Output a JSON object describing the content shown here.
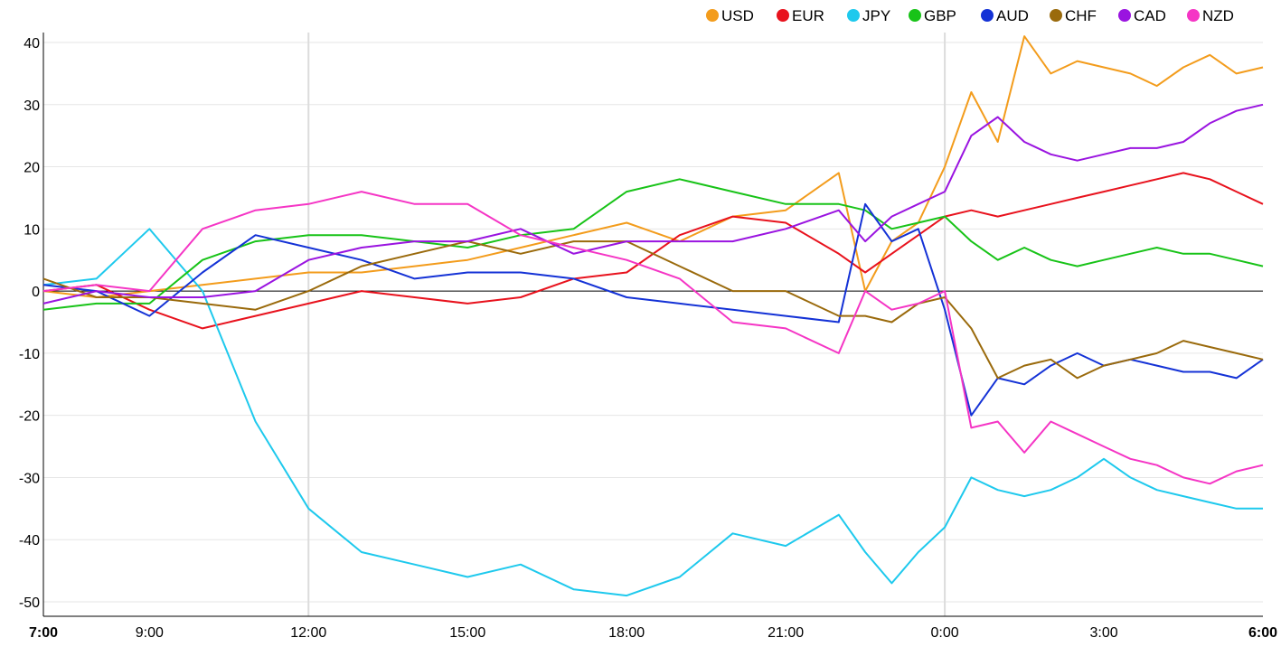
{
  "chart_data": {
    "type": "line",
    "title": "",
    "xlabel": "",
    "ylabel": "",
    "ylim": [
      -52,
      41
    ],
    "y_ticks": [
      40,
      30,
      20,
      10,
      0,
      -10,
      -20,
      -30,
      -40,
      -50
    ],
    "x_ticks": [
      {
        "label": "7:00",
        "hour": 0,
        "bold": true
      },
      {
        "label": "9:00",
        "hour": 2,
        "bold": false
      },
      {
        "label": "12:00",
        "hour": 5,
        "bold": false
      },
      {
        "label": "15:00",
        "hour": 8,
        "bold": false
      },
      {
        "label": "18:00",
        "hour": 11,
        "bold": false
      },
      {
        "label": "21:00",
        "hour": 14,
        "bold": false
      },
      {
        "label": "0:00",
        "hour": 17,
        "bold": false
      },
      {
        "label": "3:00",
        "hour": 20,
        "bold": false
      },
      {
        "label": "6:00",
        "hour": 23,
        "bold": true
      }
    ],
    "xlim": [
      0,
      23
    ],
    "major_grid_hours": [
      5,
      17
    ],
    "legend_position": "top-right",
    "series": [
      {
        "name": "USD",
        "color": "#f39c1c",
        "x": [
          0,
          1,
          2,
          3,
          4,
          5,
          6,
          7,
          8,
          9,
          10,
          11,
          12,
          13,
          14,
          15,
          15.5,
          16,
          16.5,
          17,
          17.5,
          18,
          18.5,
          19,
          19.5,
          20,
          20.5,
          21,
          21.5,
          22,
          22.5,
          23
        ],
        "y": [
          0,
          -1,
          0,
          1,
          2,
          3,
          3,
          4,
          5,
          7,
          9,
          11,
          8,
          12,
          13,
          19,
          0,
          8,
          11,
          20,
          32,
          24,
          41,
          35,
          37,
          36,
          35,
          33,
          36,
          38,
          35,
          36
        ]
      },
      {
        "name": "EUR",
        "color": "#e8121d",
        "x": [
          0,
          1,
          2,
          3,
          4,
          5,
          6,
          7,
          8,
          9,
          10,
          11,
          12,
          13,
          14,
          15,
          15.5,
          16,
          16.5,
          17,
          17.5,
          18,
          18.5,
          19,
          19.5,
          20,
          20.5,
          21,
          21.5,
          22,
          22.5,
          23
        ],
        "y": [
          0,
          1,
          -3,
          -6,
          -4,
          -2,
          0,
          -1,
          -2,
          -1,
          2,
          3,
          9,
          12,
          11,
          6,
          3,
          6,
          9,
          12,
          13,
          12,
          13,
          14,
          15,
          16,
          17,
          18,
          19,
          18,
          16,
          14
        ]
      },
      {
        "name": "JPY",
        "color": "#1ec9ed",
        "x": [
          0,
          1,
          2,
          3,
          4,
          5,
          6,
          7,
          8,
          9,
          10,
          11,
          12,
          13,
          14,
          15,
          15.5,
          16,
          16.5,
          17,
          17.5,
          18,
          18.5,
          19,
          19.5,
          20,
          20.5,
          21,
          21.5,
          22,
          22.5,
          23
        ],
        "y": [
          1,
          2,
          10,
          0,
          -21,
          -35,
          -42,
          -44,
          -46,
          -44,
          -48,
          -49,
          -46,
          -39,
          -41,
          -36,
          -42,
          -47,
          -42,
          -38,
          -30,
          -32,
          -33,
          -32,
          -30,
          -27,
          -30,
          -32,
          -33,
          -34,
          -35,
          -35
        ]
      },
      {
        "name": "GBP",
        "color": "#18c318",
        "x": [
          0,
          1,
          2,
          3,
          4,
          5,
          6,
          7,
          8,
          9,
          10,
          11,
          12,
          13,
          14,
          15,
          15.5,
          16,
          16.5,
          17,
          17.5,
          18,
          18.5,
          19,
          19.5,
          20,
          20.5,
          21,
          21.5,
          22,
          22.5,
          23
        ],
        "y": [
          -3,
          -2,
          -2,
          5,
          8,
          9,
          9,
          8,
          7,
          9,
          10,
          16,
          18,
          16,
          14,
          14,
          13,
          10,
          11,
          12,
          8,
          5,
          7,
          5,
          4,
          5,
          6,
          7,
          6,
          6,
          5,
          4
        ]
      },
      {
        "name": "AUD",
        "color": "#1432d6",
        "x": [
          0,
          1,
          2,
          3,
          4,
          5,
          6,
          7,
          8,
          9,
          10,
          11,
          12,
          13,
          14,
          15,
          15.5,
          16,
          16.5,
          17,
          17.5,
          18,
          18.5,
          19,
          19.5,
          20,
          20.5,
          21,
          21.5,
          22,
          22.5,
          23
        ],
        "y": [
          1,
          0,
          -4,
          3,
          9,
          7,
          5,
          2,
          3,
          3,
          2,
          -1,
          -2,
          -3,
          -4,
          -5,
          14,
          8,
          10,
          -3,
          -20,
          -14,
          -15,
          -12,
          -10,
          -12,
          -11,
          -12,
          -13,
          -13,
          -14,
          -11
        ]
      },
      {
        "name": "CHF",
        "color": "#9a6a0c",
        "x": [
          0,
          1,
          2,
          3,
          4,
          5,
          6,
          7,
          8,
          9,
          10,
          11,
          12,
          13,
          14,
          15,
          15.5,
          16,
          16.5,
          17,
          17.5,
          18,
          18.5,
          19,
          19.5,
          20,
          20.5,
          21,
          21.5,
          22,
          22.5,
          23
        ],
        "y": [
          2,
          -1,
          -1,
          -2,
          -3,
          0,
          4,
          6,
          8,
          6,
          8,
          8,
          4,
          0,
          0,
          -4,
          -4,
          -5,
          -2,
          -1,
          -6,
          -14,
          -12,
          -11,
          -14,
          -12,
          -11,
          -10,
          -8,
          -9,
          -10,
          -11
        ]
      },
      {
        "name": "CAD",
        "color": "#9a14e0",
        "x": [
          0,
          1,
          2,
          3,
          4,
          5,
          6,
          7,
          8,
          9,
          10,
          11,
          12,
          13,
          14,
          15,
          15.5,
          16,
          16.5,
          17,
          17.5,
          18,
          18.5,
          19,
          19.5,
          20,
          20.5,
          21,
          21.5,
          22,
          22.5,
          23
        ],
        "y": [
          -2,
          0,
          -1,
          -1,
          0,
          5,
          7,
          8,
          8,
          10,
          6,
          8,
          8,
          8,
          10,
          13,
          8,
          12,
          14,
          16,
          25,
          28,
          24,
          22,
          21,
          22,
          23,
          23,
          24,
          27,
          29,
          30
        ]
      },
      {
        "name": "NZD",
        "color": "#f535c5",
        "x": [
          0,
          1,
          2,
          3,
          4,
          5,
          6,
          7,
          8,
          9,
          10,
          11,
          12,
          13,
          14,
          15,
          15.5,
          16,
          16.5,
          17,
          17.5,
          18,
          18.5,
          19,
          19.5,
          20,
          20.5,
          21,
          21.5,
          22,
          22.5,
          23
        ],
        "y": [
          0,
          1,
          0,
          10,
          13,
          14,
          16,
          14,
          14,
          9,
          7,
          5,
          2,
          -5,
          -6,
          -10,
          0,
          -3,
          -2,
          0,
          -22,
          -21,
          -26,
          -21,
          -23,
          -25,
          -27,
          -28,
          -30,
          -31,
          -29,
          -28
        ]
      }
    ]
  }
}
